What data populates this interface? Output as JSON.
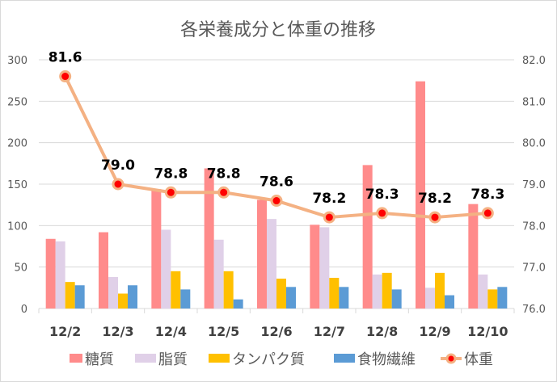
{
  "chart_data": {
    "type": "bar+line",
    "title": "各栄養成分と体重の推移",
    "categories": [
      "12/2",
      "12/3",
      "12/4",
      "12/5",
      "12/6",
      "12/7",
      "12/8",
      "12/9",
      "12/10"
    ],
    "series": [
      {
        "name": "糖質",
        "type": "bar",
        "axis": "left",
        "color": "#ff8b8b",
        "values": [
          84,
          92,
          144,
          169,
          131,
          101,
          173,
          274,
          126
        ]
      },
      {
        "name": "脂質",
        "type": "bar",
        "axis": "left",
        "color": "#e0d0e8",
        "values": [
          81,
          38,
          95,
          83,
          108,
          98,
          41,
          25,
          41
        ]
      },
      {
        "name": "タンパク質",
        "type": "bar",
        "axis": "left",
        "color": "#ffc000",
        "values": [
          32,
          18,
          45,
          45,
          36,
          37,
          43,
          43,
          23
        ]
      },
      {
        "name": "食物繊維",
        "type": "bar",
        "axis": "left",
        "color": "#5b9bd5",
        "values": [
          28,
          28,
          23,
          11,
          26,
          26,
          23,
          16,
          26
        ]
      },
      {
        "name": "体重",
        "type": "line",
        "axis": "right",
        "color": "#f4b183",
        "marker_color": "#ff0000",
        "values": [
          81.6,
          79.0,
          78.8,
          78.8,
          78.6,
          78.2,
          78.3,
          78.2,
          78.3
        ],
        "data_labels": [
          "81.6",
          "79.0",
          "78.8",
          "78.8",
          "78.6",
          "78.2",
          "78.3",
          "78.2",
          "78.3"
        ]
      }
    ],
    "y_left": {
      "range": [
        0,
        300
      ],
      "ticks": [
        "0",
        "50",
        "100",
        "150",
        "200",
        "250",
        "300"
      ]
    },
    "y_right": {
      "range": [
        76,
        82
      ],
      "ticks": [
        "76.0",
        "77.0",
        "78.0",
        "79.0",
        "80.0",
        "81.0",
        "82.0"
      ]
    },
    "grid": true,
    "legend": "bottom"
  }
}
